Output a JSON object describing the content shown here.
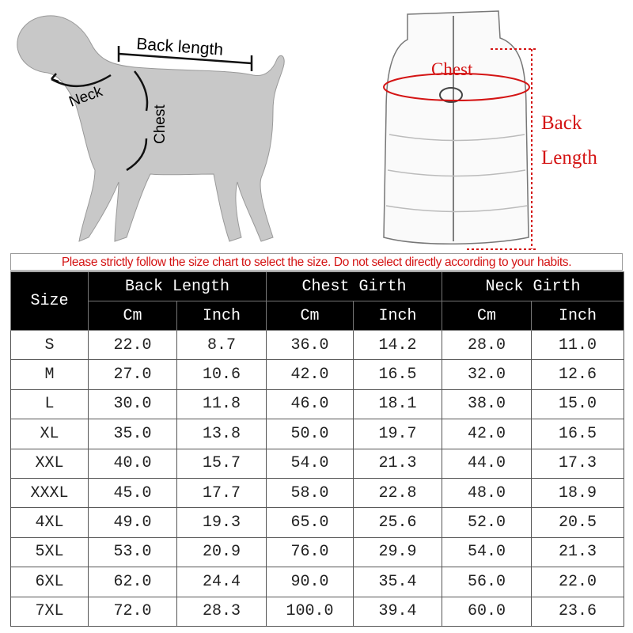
{
  "illustration": {
    "dog_labels": {
      "back_length": "Back length",
      "neck": "Neck",
      "chest": "Chest"
    },
    "vest_labels": {
      "chest": "Chest",
      "back_length_line1": "Back",
      "back_length_line2": "Length"
    },
    "accent_color": "#d41414"
  },
  "notice": "Please strictly follow the size chart to select the size. Do not select directly according to your habits.",
  "table": {
    "size_header": "Size",
    "groups": [
      "Back Length",
      "Chest Girth",
      "Neck Girth"
    ],
    "units": [
      "Cm",
      "Inch",
      "Cm",
      "Inch",
      "Cm",
      "Inch"
    ],
    "rows": [
      [
        "S",
        "22.0",
        "8.7",
        "36.0",
        "14.2",
        "28.0",
        "11.0"
      ],
      [
        "M",
        "27.0",
        "10.6",
        "42.0",
        "16.5",
        "32.0",
        "12.6"
      ],
      [
        "L",
        "30.0",
        "11.8",
        "46.0",
        "18.1",
        "38.0",
        "15.0"
      ],
      [
        "XL",
        "35.0",
        "13.8",
        "50.0",
        "19.7",
        "42.0",
        "16.5"
      ],
      [
        "XXL",
        "40.0",
        "15.7",
        "54.0",
        "21.3",
        "44.0",
        "17.3"
      ],
      [
        "XXXL",
        "45.0",
        "17.7",
        "58.0",
        "22.8",
        "48.0",
        "18.9"
      ],
      [
        "4XL",
        "49.0",
        "19.3",
        "65.0",
        "25.6",
        "52.0",
        "20.5"
      ],
      [
        "5XL",
        "53.0",
        "20.9",
        "76.0",
        "29.9",
        "54.0",
        "21.3"
      ],
      [
        "6XL",
        "62.0",
        "24.4",
        "90.0",
        "35.4",
        "56.0",
        "22.0"
      ],
      [
        "7XL",
        "72.0",
        "28.3",
        "100.0",
        "39.4",
        "60.0",
        "23.6"
      ]
    ]
  }
}
